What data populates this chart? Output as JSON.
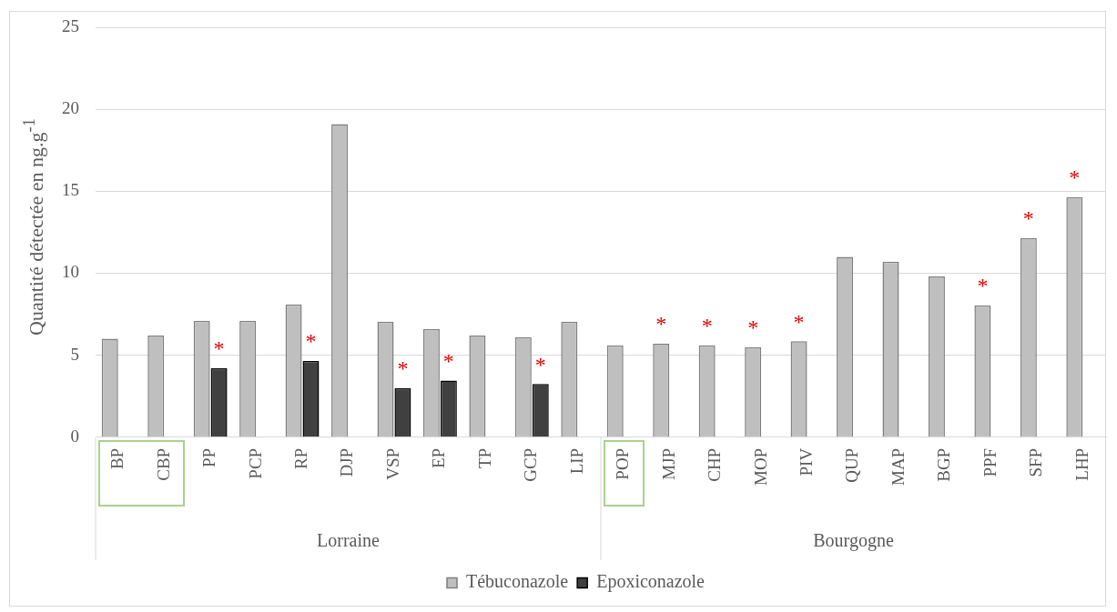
{
  "chart_data": {
    "type": "bar",
    "ylabel": "Quantité détectée en ng.g$^{-1}$",
    "categories": [
      "BP",
      "CBP",
      "PP",
      "PCP",
      "RP",
      "DJP",
      "VSP",
      "EP",
      "TP",
      "GCP",
      "LIP",
      "POP",
      "MJP",
      "CHP",
      "MOP",
      "PIV",
      "QUP",
      "MAP",
      "BGP",
      "PPF",
      "SFP",
      "LHP"
    ],
    "series": [
      {
        "name": "Tébuconazole",
        "color": "#bfbfbf",
        "values": [
          6.0,
          6.2,
          7.1,
          7.1,
          8.1,
          19.1,
          7.05,
          6.6,
          6.2,
          6.1,
          7.05,
          5.6,
          5.7,
          5.6,
          5.5,
          5.85,
          11.0,
          10.7,
          9.8,
          8.05,
          12.15,
          14.65
        ]
      },
      {
        "name": "Epoxiconazole",
        "color": "#404040",
        "values": [
          null,
          null,
          4.2,
          null,
          4.65,
          null,
          3.0,
          3.45,
          null,
          3.25,
          null,
          null,
          null,
          null,
          null,
          null,
          null,
          null,
          null,
          null,
          null,
          null
        ]
      }
    ],
    "ylim": [
      0,
      25
    ],
    "yticks": [
      0,
      5,
      10,
      15,
      20,
      25
    ],
    "grid": "y",
    "legend": "bottom",
    "annotations": [
      {
        "text": "*",
        "x": "PP",
        "y": 4.2
      },
      {
        "text": "*",
        "x": "RP",
        "y": 4.65
      },
      {
        "text": "*",
        "x": "VSP",
        "y": 3.0
      },
      {
        "text": "*",
        "x": "EP",
        "y": 3.45
      },
      {
        "text": "*",
        "x": "GCP",
        "y": 3.25
      },
      {
        "text": "*",
        "x": "MJP",
        "y": 5.7
      },
      {
        "text": "*",
        "x": "CHP",
        "y": 5.6
      },
      {
        "text": "*",
        "x": "MOP",
        "y": 5.5
      },
      {
        "text": "*",
        "x": "PIV",
        "y": 5.85
      },
      {
        "text": "*",
        "x": "PPF",
        "y": 8.05
      },
      {
        "text": "*",
        "x": "SFP",
        "y": 12.15
      },
      {
        "text": "*",
        "x": "LHP",
        "y": 14.65
      },
      "Lorraine",
      "Bourgogne"
    ]
  }
}
